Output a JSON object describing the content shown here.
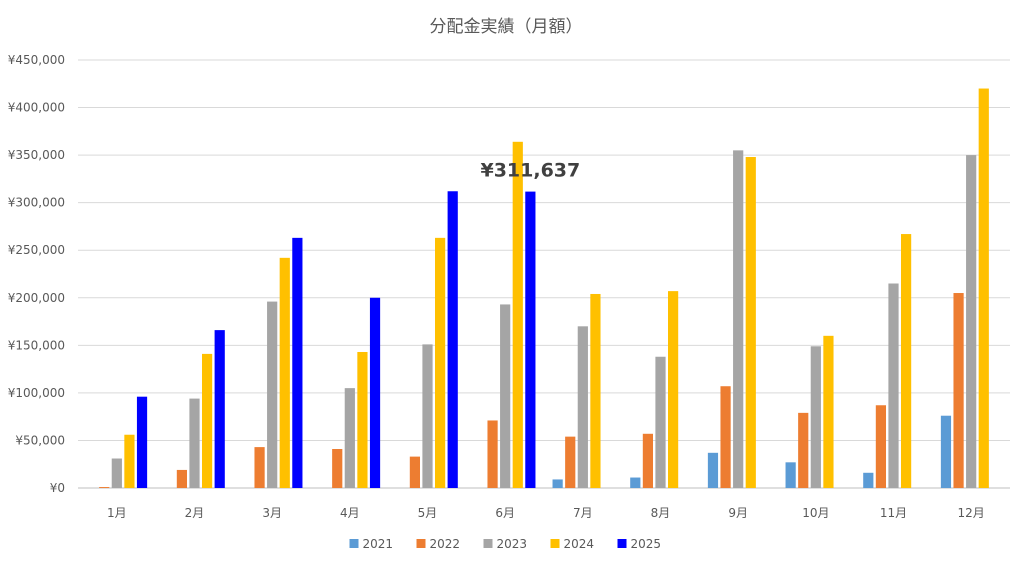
{
  "chart_data": {
    "type": "bar",
    "title": "分配金実績（月額）",
    "xlabel": "",
    "ylabel": "",
    "ylim": [
      0,
      450000
    ],
    "yticks": [
      0,
      50000,
      100000,
      150000,
      200000,
      250000,
      300000,
      350000,
      400000,
      450000
    ],
    "ytick_labels": [
      "¥0",
      "¥50,000",
      "¥100,000",
      "¥150,000",
      "¥200,000",
      "¥250,000",
      "¥300,000",
      "¥350,000",
      "¥400,000",
      "¥450,000"
    ],
    "categories": [
      "1月",
      "2月",
      "3月",
      "4月",
      "5月",
      "6月",
      "7月",
      "8月",
      "9月",
      "10月",
      "11月",
      "12月"
    ],
    "grid": true,
    "legend_position": "bottom",
    "series": [
      {
        "name": "2021",
        "color": "#5b9bd5",
        "values": [
          0,
          0,
          0,
          0,
          0,
          0,
          9000,
          11000,
          37000,
          27000,
          16000,
          76000
        ]
      },
      {
        "name": "2022",
        "color": "#ed7d31",
        "values": [
          1000,
          19000,
          43000,
          41000,
          33000,
          71000,
          54000,
          57000,
          107000,
          79000,
          87000,
          205000
        ]
      },
      {
        "name": "2023",
        "color": "#a5a5a5",
        "values": [
          31000,
          94000,
          196000,
          105000,
          151000,
          193000,
          170000,
          138000,
          355000,
          149000,
          215000,
          350000
        ]
      },
      {
        "name": "2024",
        "color": "#ffc000",
        "values": [
          56000,
          141000,
          242000,
          143000,
          263000,
          364000,
          204000,
          207000,
          348000,
          160000,
          267000,
          420000
        ]
      },
      {
        "name": "2025",
        "color": "#0000ff",
        "values": [
          96000,
          166000,
          263000,
          200000,
          312000,
          311637,
          null,
          null,
          null,
          null,
          null,
          null
        ]
      }
    ],
    "annotation": {
      "text": "¥311,637",
      "category": "6月",
      "series": "2025",
      "value": 311637
    }
  }
}
